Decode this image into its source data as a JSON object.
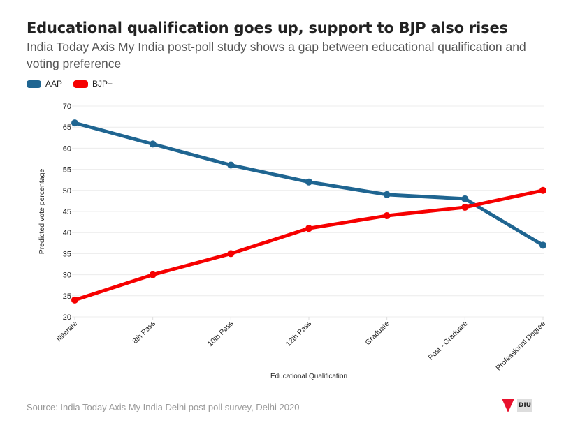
{
  "header": {
    "title": "Educational qualification goes up, support to BJP also rises",
    "subtitle": "India Today Axis My India post-poll study shows a gap between educational qualification and voting preference"
  },
  "legend": [
    {
      "name": "AAP",
      "color": "#1f6591"
    },
    {
      "name": "BJP+",
      "color": "#f60000"
    }
  ],
  "footer": {
    "source": "Source: India Today Axis My India Delhi post poll survey, Delhi 2020",
    "logo_left": "INDIA TODAY GROUP",
    "logo_right": "DIU"
  },
  "chart_data": {
    "type": "line",
    "title": "Educational qualification goes up, support to BJP also rises",
    "subtitle": "India Today Axis My India post-poll study shows a gap between educational qualification and voting preference",
    "xlabel": "Educational Qualification",
    "ylabel": "Predicted vote percentage",
    "categories": [
      "Illiterate",
      "8th Pass",
      "10th Pass",
      "12th Pass",
      "Graduate",
      "Post - Graduate",
      "Professional Degree"
    ],
    "ylim": [
      20,
      70
    ],
    "yticks": [
      20,
      25,
      30,
      35,
      40,
      45,
      50,
      55,
      60,
      65,
      70
    ],
    "grid": true,
    "legend_position": "top-left",
    "series": [
      {
        "name": "AAP",
        "color": "#1f6591",
        "values": [
          66,
          61,
          56,
          52,
          49,
          48,
          37
        ]
      },
      {
        "name": "BJP+",
        "color": "#f60000",
        "values": [
          24,
          30,
          35,
          41,
          44,
          46,
          50
        ]
      }
    ]
  }
}
